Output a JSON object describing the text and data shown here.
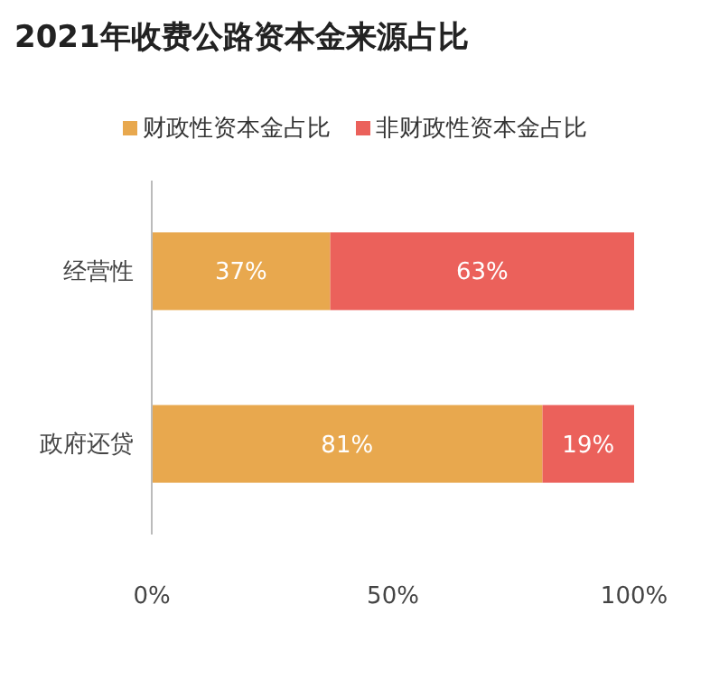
{
  "chart_data": {
    "type": "bar",
    "title": "2021年收费公路资本金来源占比",
    "orientation": "horizontal",
    "stacked": true,
    "categories": [
      "经营性",
      "政府还贷"
    ],
    "series": [
      {
        "name": "财政性资本金占比",
        "color": "#e8a84e",
        "values": [
          37,
          81
        ],
        "value_labels": [
          "37%",
          "81%"
        ]
      },
      {
        "name": "非财政性资本金占比",
        "color": "#eb615b",
        "values": [
          63,
          19
        ],
        "value_labels": [
          "63%",
          "19%"
        ]
      }
    ],
    "xlim": [
      0,
      100
    ],
    "xticks": [
      {
        "value": 0,
        "label": "0%"
      },
      {
        "value": 50,
        "label": "50%"
      },
      {
        "value": 100,
        "label": "100%"
      }
    ],
    "grid": false,
    "legend": "top"
  }
}
